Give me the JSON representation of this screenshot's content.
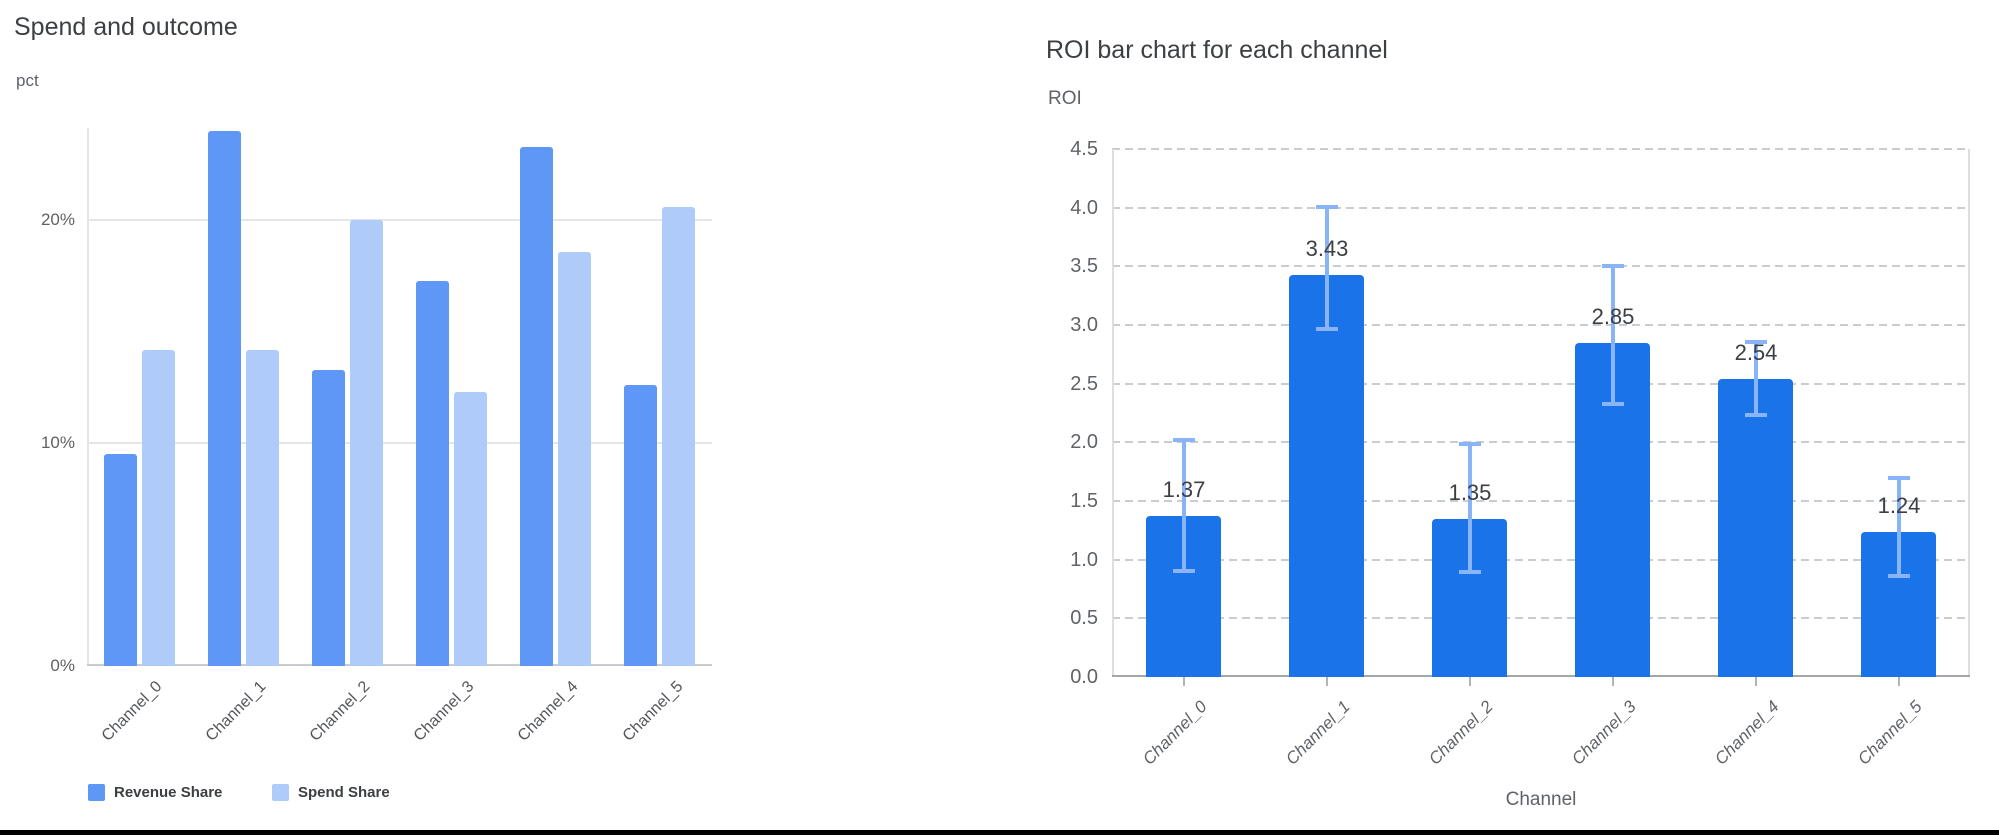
{
  "page": {
    "background_color": "#ffffff",
    "bottom_edge_color": "#000000"
  },
  "chart_data": [
    {
      "type": "bar",
      "title": "Spend and outcome",
      "ylabel": "pct",
      "xlabel": "",
      "categories": [
        "Channel_0",
        "Channel_1",
        "Channel_2",
        "Channel_3",
        "Channel_4",
        "Channel_5"
      ],
      "series": [
        {
          "name": "Revenue Share",
          "color": "#5e97f6",
          "values": [
            9.5,
            24.0,
            13.3,
            17.3,
            23.3,
            12.6
          ]
        },
        {
          "name": "Spend Share",
          "color": "#aecbfa",
          "values": [
            14.2,
            14.2,
            20.0,
            12.3,
            18.6,
            20.6
          ]
        }
      ],
      "y_ticks": [
        {
          "value": 0,
          "label": "0%"
        },
        {
          "value": 10,
          "label": "10%"
        },
        {
          "value": 20,
          "label": "20%"
        }
      ],
      "ylim": [
        0,
        24.15
      ],
      "grid": "solid",
      "legend_position": "bottom"
    },
    {
      "type": "bar",
      "title": "ROI bar chart for each channel",
      "ylabel": "ROI",
      "xlabel": "Channel",
      "categories": [
        "Channel_0",
        "Channel_1",
        "Channel_2",
        "Channel_3",
        "Channel_4",
        "Channel_5"
      ],
      "values": [
        1.37,
        3.43,
        1.35,
        2.85,
        2.54,
        1.24
      ],
      "bar_labels": [
        "1.37",
        "3.43",
        "1.35",
        "2.85",
        "2.54",
        "1.24"
      ],
      "error_low": [
        0.89,
        2.95,
        0.88,
        2.31,
        2.22,
        0.84
      ],
      "error_high": [
        2.04,
        4.02,
        2.0,
        3.52,
        2.87,
        1.71
      ],
      "bar_color": "#1a73e8",
      "error_color": "#8ab4f8",
      "y_ticks": [
        {
          "value": 0.0,
          "label": "0.0"
        },
        {
          "value": 0.5,
          "label": "0.5"
        },
        {
          "value": 1.0,
          "label": "1.0"
        },
        {
          "value": 1.5,
          "label": "1.5"
        },
        {
          "value": 2.0,
          "label": "2.0"
        },
        {
          "value": 2.5,
          "label": "2.5"
        },
        {
          "value": 3.0,
          "label": "3.0"
        },
        {
          "value": 3.5,
          "label": "3.5"
        },
        {
          "value": 4.0,
          "label": "4.0"
        },
        {
          "value": 4.5,
          "label": "4.5"
        }
      ],
      "ylim": [
        0,
        4.5
      ],
      "grid": "dashed",
      "legend_position": "none"
    }
  ]
}
